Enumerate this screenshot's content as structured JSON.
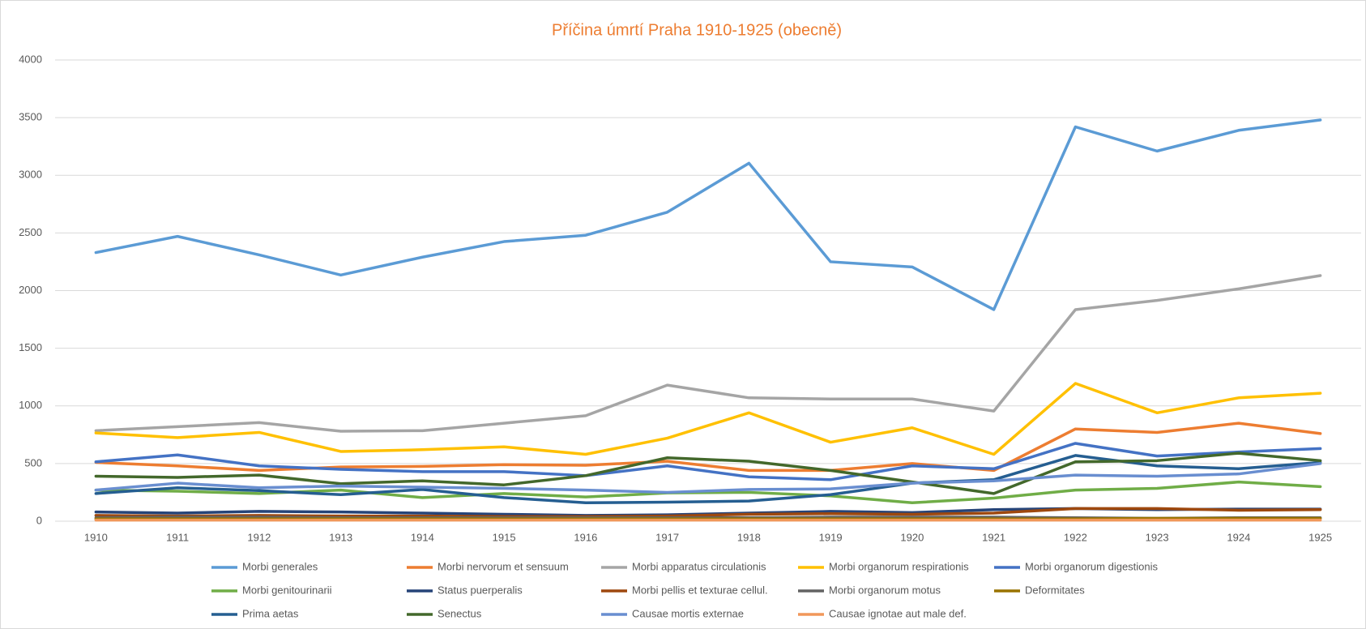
{
  "chart_data": {
    "type": "line",
    "title": "Příčina úmrtí Praha 1910-1925 (obecně)",
    "categories": [
      "1910",
      "1911",
      "1912",
      "1913",
      "1914",
      "1915",
      "1916",
      "1917",
      "1918",
      "1919",
      "1920",
      "1921",
      "1922",
      "1923",
      "1924",
      "1925"
    ],
    "ylim": [
      0,
      4000
    ],
    "yticks": [
      0,
      500,
      1000,
      1500,
      2000,
      2500,
      3000,
      3500,
      4000
    ],
    "grid": true,
    "legend": "bottom",
    "series": [
      {
        "name": "Morbi generales",
        "color": "#5b9bd5",
        "values": [
          2330,
          2470,
          2310,
          2135,
          2290,
          2425,
          2480,
          2680,
          3105,
          2250,
          2205,
          1835,
          3420,
          3210,
          3390,
          3480
        ]
      },
      {
        "name": "Morbi nervorum et sensuum",
        "color": "#ed7d31",
        "values": [
          510,
          480,
          440,
          470,
          475,
          490,
          485,
          520,
          440,
          440,
          500,
          440,
          800,
          770,
          850,
          760
        ]
      },
      {
        "name": "Morbi apparatus circulationis",
        "color": "#a5a5a5",
        "values": [
          785,
          820,
          855,
          780,
          785,
          850,
          915,
          1180,
          1070,
          1060,
          1060,
          955,
          1835,
          1915,
          2015,
          2130
        ]
      },
      {
        "name": "Morbi organorum respirationis",
        "color": "#ffc000",
        "values": [
          765,
          725,
          770,
          605,
          620,
          645,
          580,
          720,
          940,
          685,
          810,
          580,
          1195,
          940,
          1070,
          1110
        ]
      },
      {
        "name": "Morbi organorum digestionis",
        "color": "#4472c4",
        "values": [
          515,
          575,
          480,
          450,
          430,
          430,
          395,
          480,
          385,
          360,
          480,
          455,
          675,
          565,
          600,
          630
        ]
      },
      {
        "name": "Morbi genitourinarii",
        "color": "#70ad47",
        "values": [
          270,
          260,
          240,
          270,
          205,
          240,
          210,
          245,
          250,
          220,
          160,
          200,
          270,
          285,
          340,
          300
        ]
      },
      {
        "name": "Status puerperalis",
        "color": "#264478",
        "values": [
          80,
          70,
          85,
          80,
          70,
          60,
          50,
          55,
          70,
          85,
          75,
          100,
          110,
          100,
          105,
          105
        ]
      },
      {
        "name": "Morbi pellis et texturae cellul.",
        "color": "#9e480e",
        "values": [
          50,
          45,
          50,
          45,
          45,
          40,
          40,
          45,
          60,
          65,
          60,
          70,
          110,
          110,
          95,
          100
        ]
      },
      {
        "name": "Morbi organorum motus",
        "color": "#636363",
        "values": [
          30,
          35,
          35,
          30,
          30,
          30,
          30,
          30,
          30,
          35,
          35,
          35,
          30,
          25,
          30,
          30
        ]
      },
      {
        "name": "Deformitates",
        "color": "#997300",
        "values": [
          20,
          20,
          20,
          20,
          20,
          20,
          20,
          20,
          20,
          20,
          20,
          20,
          20,
          25,
          25,
          25
        ]
      },
      {
        "name": "Prima aetas",
        "color": "#255e91",
        "values": [
          240,
          290,
          265,
          230,
          275,
          205,
          160,
          165,
          175,
          230,
          330,
          360,
          570,
          480,
          455,
          510
        ]
      },
      {
        "name": "Senectus",
        "color": "#43682b",
        "values": [
          390,
          380,
          400,
          325,
          350,
          315,
          395,
          550,
          520,
          440,
          340,
          240,
          515,
          525,
          590,
          525
        ]
      },
      {
        "name": "Causae mortis externae",
        "color": "#698ed0",
        "values": [
          270,
          330,
          290,
          305,
          295,
          285,
          270,
          250,
          275,
          280,
          330,
          350,
          400,
          390,
          410,
          500
        ]
      },
      {
        "name": "Causae ignotae aut male def.",
        "color": "#f1975a",
        "values": [
          10,
          10,
          10,
          10,
          10,
          10,
          10,
          10,
          10,
          10,
          10,
          10,
          10,
          10,
          10,
          10
        ]
      }
    ]
  }
}
